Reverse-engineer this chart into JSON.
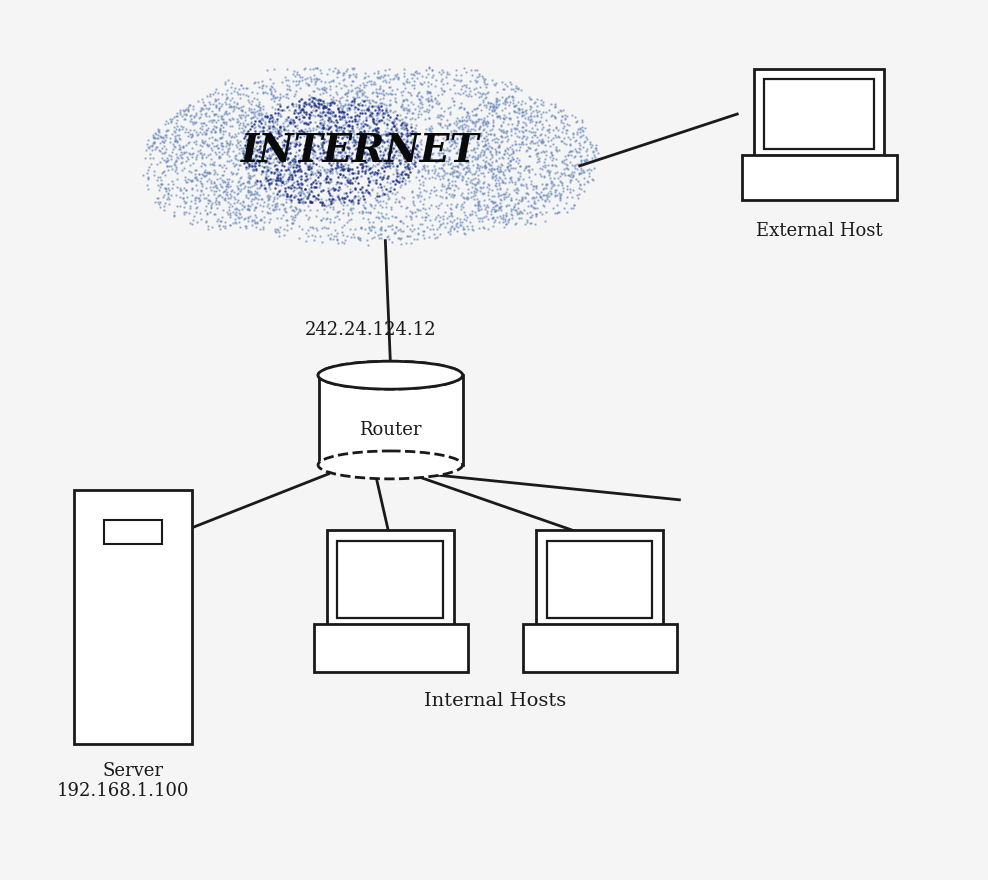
{
  "bg_color": "#f5f5f5",
  "title": "INTERNET",
  "router_label": "Router",
  "router_ip": "242.24.124.12",
  "server_label": "Server\n192.168.1.100",
  "external_host_label": "External Host",
  "internal_hosts_label": "Internal Hosts",
  "line_color": "#1a1a1a",
  "cloud_dot_color_light": "#6688bb",
  "cloud_dot_color_dark": "#223388",
  "internet_fontsize": 28,
  "label_fontsize": 13,
  "router_ip_fontsize": 13
}
